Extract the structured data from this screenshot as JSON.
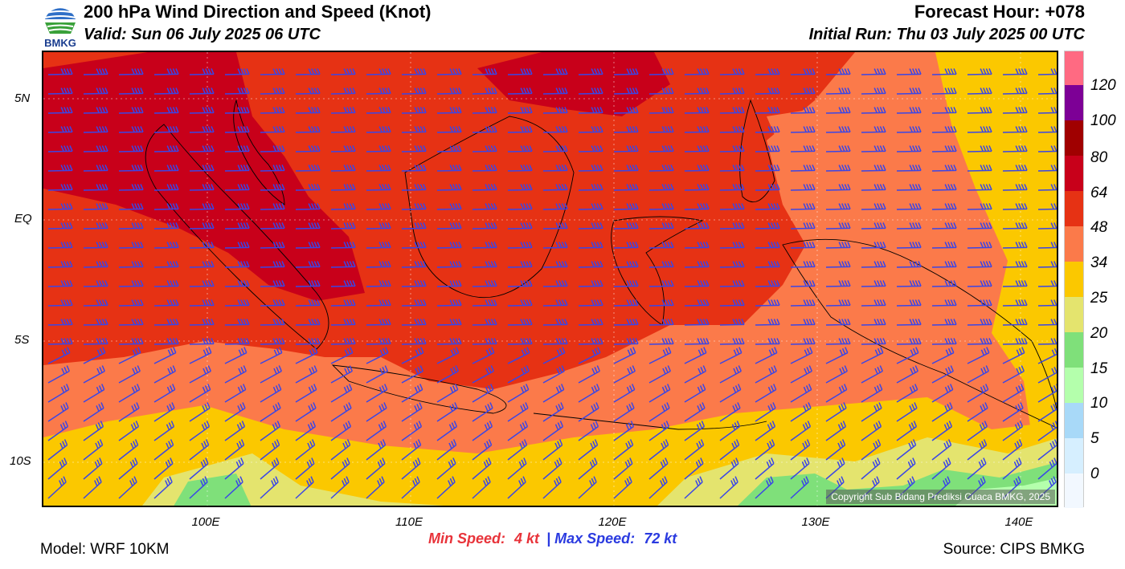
{
  "header": {
    "title": "200 hPa Wind Direction and Speed (Knot)",
    "valid": "Valid: Sun 06 July 2025 06 UTC",
    "forecast_hour": "Forecast Hour: +078",
    "initial_run": "Initial Run: Thu 03 July 2025 00 UTC",
    "logo_text": "BMKG"
  },
  "map": {
    "lat_labels": [
      "5N",
      "EQ",
      "5S",
      "10S"
    ],
    "lon_labels": [
      "100E",
      "110E",
      "120E",
      "130E",
      "140E"
    ],
    "copyright": "Copyright Sub Bidang Prediksi Cuaca BMKG, 2025",
    "colors": {
      "c0": "#f2f8ff",
      "c5": "#d6efff",
      "c10": "#a8d9f8",
      "c15": "#b4ffac",
      "c20": "#7fe07a",
      "c25": "#e4e46e",
      "c34": "#fbc800",
      "c48": "#fb7a4a",
      "c64": "#e63214",
      "c80": "#c8001a",
      "c100": "#a00000",
      "c120": "#7d0096",
      "cmax": "#ff6a82",
      "barb": "#3a46e6"
    }
  },
  "legend": {
    "labels": [
      "120",
      "100",
      "80",
      "64",
      "48",
      "34",
      "25",
      "20",
      "15",
      "10",
      "5",
      "0"
    ]
  },
  "footer": {
    "min_label": "Min Speed:",
    "min_value": "4 kt",
    "separator": "|",
    "max_label": "Max Speed:",
    "max_value": "72 kt",
    "model": "Model: WRF 10KM",
    "source": "Source: CIPS BMKG"
  }
}
